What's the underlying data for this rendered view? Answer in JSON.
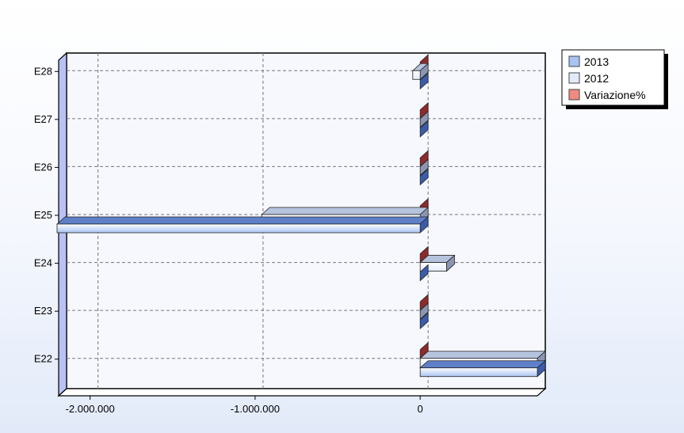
{
  "chart_data": {
    "type": "bar",
    "orientation": "horizontal",
    "categories": [
      "E22",
      "E23",
      "E24",
      "E25",
      "E26",
      "E27",
      "E28"
    ],
    "series": [
      {
        "name": "2013",
        "values": [
          710000,
          0,
          0,
          -2200000,
          0,
          0,
          0
        ]
      },
      {
        "name": "2012",
        "values": [
          710000,
          0,
          160000,
          -960000,
          0,
          0,
          -45000
        ]
      },
      {
        "name": "Variazione%",
        "values": [
          0,
          0,
          0,
          0,
          0,
          0,
          0
        ]
      }
    ],
    "xlim": [
      -2200000,
      710000
    ],
    "x_ticks": [
      {
        "value": -2000000,
        "label": "-2.000.000"
      },
      {
        "value": -1000000,
        "label": "-1.000.000"
      },
      {
        "value": 0,
        "label": "0"
      }
    ],
    "title": "",
    "xlabel": "",
    "ylabel": "",
    "grid": true,
    "legend_position": "top-right",
    "colors": {
      "2013": "#a9c4f2",
      "2012": "#e3ebfb",
      "Variazione%": "#f08a80",
      "bar_top_2013": "#5f7fc8",
      "bar_top_2012": "#b6c3dd",
      "bar_side_2013": "#3c5cab",
      "bar_side_2012": "#8a96b3",
      "var_face": "#8e2a2a",
      "wall": "#b9c2f5"
    }
  }
}
